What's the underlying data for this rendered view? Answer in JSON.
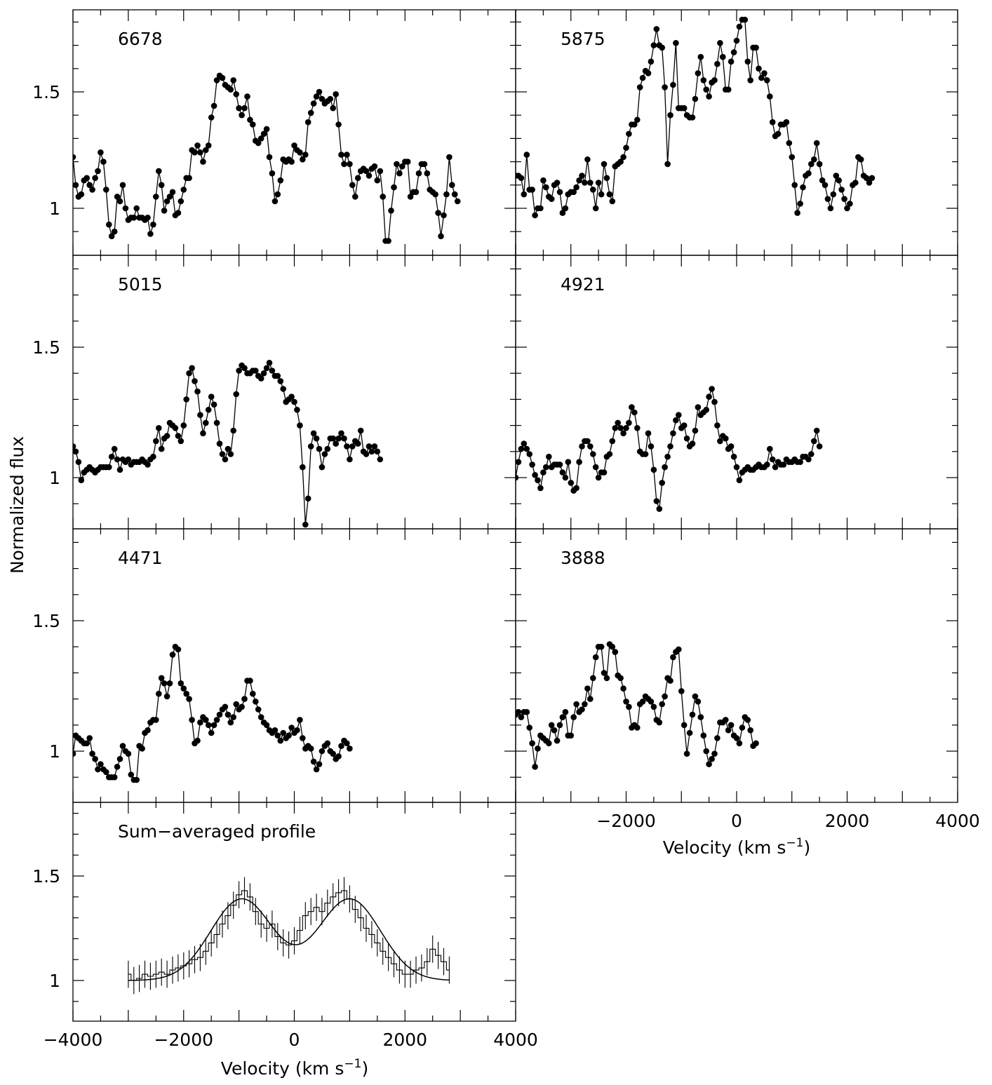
{
  "chart_data": {
    "type": "line",
    "ylabel": "Normalized flux",
    "xlabel": "Velocity (km s",
    "xlabel_exp": "−1",
    "xlabel_close": ")",
    "xlim": [
      -4000,
      4000
    ],
    "ylim": [
      0.82,
      1.85
    ],
    "yticks": [
      "1",
      "1.5"
    ],
    "yticks_val": [
      1,
      1.5
    ],
    "xticks_val": [
      -4000,
      -2000,
      0,
      2000,
      4000
    ],
    "xticks_right": [
      "−2000",
      "0",
      "2000",
      "4000"
    ],
    "xticks_left": [
      "−4000",
      "−2000",
      "0",
      "2000",
      "4000"
    ],
    "panels": [
      {
        "label": "6678",
        "x_start": -4000,
        "x_step": 50,
        "y": [
          1.22,
          1.1,
          1.05,
          1.06,
          1.12,
          1.13,
          1.1,
          1.08,
          1.13,
          1.16,
          1.24,
          1.2,
          1.08,
          0.93,
          0.88,
          0.9,
          1.05,
          1.03,
          1.1,
          1.0,
          0.95,
          0.96,
          0.96,
          1.0,
          0.96,
          0.96,
          0.95,
          0.96,
          0.89,
          0.93,
          1.05,
          1.16,
          1.1,
          0.99,
          1.03,
          1.05,
          1.07,
          0.97,
          0.98,
          1.03,
          1.08,
          1.13,
          1.13,
          1.25,
          1.24,
          1.27,
          1.24,
          1.2,
          1.25,
          1.27,
          1.39,
          1.44,
          1.55,
          1.57,
          1.56,
          1.53,
          1.52,
          1.51,
          1.55,
          1.49,
          1.43,
          1.4,
          1.43,
          1.48,
          1.38,
          1.36,
          1.29,
          1.28,
          1.3,
          1.32,
          1.34,
          1.22,
          1.15,
          1.03,
          1.06,
          1.12,
          1.21,
          1.2,
          1.21,
          1.2,
          1.27,
          1.25,
          1.24,
          1.21,
          1.23,
          1.37,
          1.41,
          1.45,
          1.48,
          1.5,
          1.47,
          1.45,
          1.46,
          1.47,
          1.43,
          1.49,
          1.36,
          1.23,
          1.19,
          1.23,
          1.19,
          1.1,
          1.05,
          1.13,
          1.16,
          1.17,
          1.16,
          1.14,
          1.17,
          1.18,
          1.12,
          1.16,
          1.05,
          0.86,
          0.86,
          0.99,
          1.09,
          1.19,
          1.15,
          1.18,
          1.2,
          1.2,
          1.05,
          1.07,
          1.07,
          1.15,
          1.19,
          1.19,
          1.15,
          1.08,
          1.07,
          1.06,
          0.98,
          0.88,
          0.97,
          1.06,
          1.22,
          1.1,
          1.06,
          1.03
        ]
      },
      {
        "label": "5875",
        "x_start": -4000,
        "x_step": 50,
        "y": [
          1.14,
          1.14,
          1.13,
          1.06,
          1.23,
          1.08,
          1.08,
          0.97,
          1.0,
          1.0,
          1.12,
          1.09,
          1.05,
          1.04,
          1.1,
          1.11,
          1.07,
          0.98,
          1.0,
          1.06,
          1.07,
          1.07,
          1.09,
          1.12,
          1.14,
          1.11,
          1.21,
          1.11,
          1.08,
          1.0,
          1.11,
          1.06,
          1.19,
          1.13,
          1.06,
          1.03,
          1.18,
          1.19,
          1.2,
          1.22,
          1.26,
          1.32,
          1.36,
          1.36,
          1.38,
          1.52,
          1.56,
          1.59,
          1.58,
          1.63,
          1.7,
          1.77,
          1.7,
          1.69,
          1.52,
          1.19,
          1.4,
          1.53,
          1.71,
          1.43,
          1.43,
          1.43,
          1.4,
          1.39,
          1.39,
          1.47,
          1.58,
          1.65,
          1.55,
          1.51,
          1.48,
          1.54,
          1.55,
          1.62,
          1.71,
          1.65,
          1.51,
          1.51,
          1.63,
          1.67,
          1.72,
          1.78,
          1.81,
          1.81,
          1.63,
          1.55,
          1.69,
          1.69,
          1.6,
          1.56,
          1.58,
          1.55,
          1.48,
          1.37,
          1.31,
          1.32,
          1.36,
          1.36,
          1.37,
          1.28,
          1.22,
          1.1,
          0.98,
          1.02,
          1.09,
          1.14,
          1.15,
          1.19,
          1.21,
          1.28,
          1.19,
          1.12,
          1.1,
          1.04,
          1.0,
          1.06,
          1.14,
          1.12,
          1.08,
          1.04,
          1.0,
          1.02,
          1.1,
          1.11,
          1.22,
          1.21,
          1.14,
          1.13,
          1.11,
          1.13
        ]
      },
      {
        "label": "5015",
        "x_start": -4000,
        "x_step": 50,
        "y": [
          1.12,
          1.1,
          1.06,
          0.99,
          1.02,
          1.03,
          1.04,
          1.03,
          1.02,
          1.03,
          1.04,
          1.04,
          1.04,
          1.04,
          1.08,
          1.11,
          1.07,
          1.03,
          1.07,
          1.06,
          1.07,
          1.05,
          1.06,
          1.06,
          1.06,
          1.07,
          1.06,
          1.05,
          1.07,
          1.08,
          1.14,
          1.19,
          1.11,
          1.15,
          1.16,
          1.21,
          1.2,
          1.19,
          1.16,
          1.14,
          1.2,
          1.3,
          1.4,
          1.42,
          1.37,
          1.33,
          1.24,
          1.17,
          1.21,
          1.26,
          1.31,
          1.28,
          1.21,
          1.13,
          1.09,
          1.07,
          1.11,
          1.09,
          1.18,
          1.32,
          1.41,
          1.43,
          1.42,
          1.4,
          1.4,
          1.41,
          1.41,
          1.39,
          1.38,
          1.4,
          1.42,
          1.44,
          1.41,
          1.39,
          1.39,
          1.37,
          1.34,
          1.29,
          1.3,
          1.31,
          1.29,
          1.26,
          1.2,
          1.04,
          0.82,
          0.92,
          1.12,
          1.17,
          1.15,
          1.11,
          1.04,
          1.09,
          1.11,
          1.15,
          1.15,
          1.13,
          1.15,
          1.17,
          1.15,
          1.12,
          1.07,
          1.12,
          1.14,
          1.13,
          1.18,
          1.1,
          1.09,
          1.12,
          1.1,
          1.12,
          1.1,
          1.07
        ]
      },
      {
        "label": "4921",
        "x_start": -4000,
        "x_step": 50,
        "y": [
          1.0,
          1.06,
          1.11,
          1.13,
          1.11,
          1.09,
          1.05,
          1.01,
          0.99,
          0.96,
          1.02,
          1.04,
          1.08,
          1.04,
          1.05,
          1.05,
          1.05,
          1.02,
          1.0,
          1.06,
          0.98,
          0.95,
          0.96,
          1.06,
          1.12,
          1.14,
          1.14,
          1.12,
          1.09,
          1.04,
          1.0,
          1.02,
          1.02,
          1.08,
          1.09,
          1.14,
          1.19,
          1.21,
          1.19,
          1.17,
          1.19,
          1.21,
          1.27,
          1.25,
          1.19,
          1.1,
          1.09,
          1.09,
          1.17,
          1.12,
          1.03,
          0.91,
          0.88,
          0.98,
          1.04,
          1.08,
          1.12,
          1.17,
          1.22,
          1.24,
          1.19,
          1.2,
          1.15,
          1.12,
          1.13,
          1.18,
          1.27,
          1.24,
          1.25,
          1.26,
          1.31,
          1.34,
          1.29,
          1.2,
          1.14,
          1.16,
          1.15,
          1.11,
          1.12,
          1.08,
          1.04,
          0.99,
          1.02,
          1.03,
          1.04,
          1.03,
          1.03,
          1.04,
          1.05,
          1.04,
          1.04,
          1.05,
          1.11,
          1.07,
          1.04,
          1.06,
          1.05,
          1.05,
          1.07,
          1.06,
          1.06,
          1.07,
          1.06,
          1.06,
          1.08,
          1.08,
          1.07,
          1.09,
          1.14,
          1.18,
          1.12
        ]
      },
      {
        "label": "4471",
        "x_start": -4000,
        "x_step": 50,
        "y": [
          0.99,
          1.06,
          1.05,
          1.04,
          1.03,
          1.03,
          1.05,
          0.99,
          0.97,
          0.93,
          0.95,
          0.93,
          0.92,
          0.9,
          0.9,
          0.9,
          0.94,
          0.97,
          1.02,
          1.0,
          0.99,
          0.91,
          0.89,
          0.89,
          1.02,
          1.01,
          1.07,
          1.08,
          1.11,
          1.12,
          1.12,
          1.22,
          1.28,
          1.26,
          1.21,
          1.26,
          1.37,
          1.4,
          1.39,
          1.26,
          1.24,
          1.22,
          1.2,
          1.12,
          1.03,
          1.04,
          1.11,
          1.13,
          1.12,
          1.1,
          1.07,
          1.1,
          1.12,
          1.14,
          1.16,
          1.17,
          1.14,
          1.11,
          1.13,
          1.18,
          1.16,
          1.17,
          1.2,
          1.27,
          1.27,
          1.22,
          1.19,
          1.16,
          1.13,
          1.11,
          1.1,
          1.08,
          1.07,
          1.08,
          1.06,
          1.04,
          1.07,
          1.05,
          1.06,
          1.09,
          1.07,
          1.08,
          1.12,
          1.05,
          1.01,
          1.02,
          1.01,
          0.96,
          0.93,
          0.95,
          1.0,
          1.02,
          1.03,
          1.0,
          0.99,
          0.97,
          0.98,
          1.02,
          1.04,
          1.03,
          1.01
        ]
      },
      {
        "label": "3888",
        "x_start": -4000,
        "x_step": 50,
        "y": [
          1.14,
          1.15,
          1.13,
          1.15,
          1.15,
          1.09,
          1.03,
          0.94,
          1.01,
          1.06,
          1.05,
          1.04,
          1.03,
          1.1,
          1.08,
          1.04,
          1.1,
          1.13,
          1.15,
          1.06,
          1.06,
          1.13,
          1.18,
          1.15,
          1.16,
          1.18,
          1.24,
          1.2,
          1.28,
          1.36,
          1.4,
          1.4,
          1.3,
          1.28,
          1.41,
          1.4,
          1.38,
          1.29,
          1.28,
          1.24,
          1.19,
          1.17,
          1.09,
          1.1,
          1.09,
          1.18,
          1.19,
          1.21,
          1.2,
          1.19,
          1.17,
          1.12,
          1.11,
          1.18,
          1.21,
          1.28,
          1.27,
          1.36,
          1.38,
          1.39,
          1.23,
          1.1,
          0.99,
          1.07,
          1.14,
          1.21,
          1.19,
          1.13,
          1.06,
          1.0,
          0.95,
          0.97,
          0.99,
          1.05,
          1.11,
          1.11,
          1.12,
          1.08,
          1.1,
          1.06,
          1.05,
          1.03,
          1.09,
          1.13,
          1.12,
          1.08,
          1.02,
          1.03
        ]
      },
      {
        "label": "Sum−averaged profile",
        "x_start": -3000,
        "x_step": 100,
        "y": [
          1.03,
          1.0,
          1.01,
          1.03,
          1.02,
          1.03,
          1.04,
          1.03,
          1.05,
          1.06,
          1.07,
          1.08,
          1.1,
          1.11,
          1.14,
          1.18,
          1.22,
          1.27,
          1.31,
          1.36,
          1.41,
          1.43,
          1.4,
          1.33,
          1.27,
          1.25,
          1.27,
          1.21,
          1.18,
          1.17,
          1.19,
          1.24,
          1.31,
          1.33,
          1.35,
          1.33,
          1.37,
          1.4,
          1.42,
          1.43,
          1.39,
          1.34,
          1.3,
          1.25,
          1.22,
          1.18,
          1.14,
          1.11,
          1.08,
          1.05,
          1.03,
          1.03,
          1.05,
          1.06,
          1.09,
          1.15,
          1.12,
          1.09,
          1.05
        ],
        "err": 0.065,
        "fit": {
          "c": 1.0,
          "a1": 0.39,
          "mu1": -950,
          "s1": 560,
          "a2": 0.39,
          "mu2": 1000,
          "s2": 560
        }
      }
    ]
  }
}
